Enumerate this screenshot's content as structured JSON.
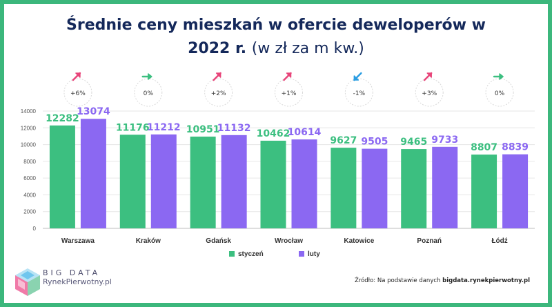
{
  "title_bold_line1": "Średnie ceny mieszkań w ofercie deweloperów w",
  "title_bold_line2": "2022 r.",
  "title_light": "(w zł za m kw.)",
  "logo": {
    "line1": "BIG DATA",
    "line2": "RynekPierwotny.pl"
  },
  "source": {
    "prefix": "Źródło: Na podstawie danych",
    "site": "bigdata.rynekpierwotny.pl"
  },
  "colors": {
    "series1": "#3cbf80",
    "series2": "#8b68f2",
    "up": "#e8457a",
    "flat": "#3cbf80",
    "down": "#2a9de2",
    "frame": "#3cb77c"
  },
  "chart_data": {
    "type": "bar",
    "categories": [
      "Warszawa",
      "Kraków",
      "Gdańsk",
      "Wrocław",
      "Katowice",
      "Poznań",
      "Łódź"
    ],
    "series": [
      {
        "name": "styczeń",
        "values": [
          12282,
          11176,
          10951,
          10462,
          9627,
          9465,
          8807
        ]
      },
      {
        "name": "luty",
        "values": [
          13074,
          11212,
          11132,
          10614,
          9505,
          9733,
          8839
        ]
      }
    ],
    "changes": [
      {
        "label": "+6%",
        "direction": "up"
      },
      {
        "label": "0%",
        "direction": "flat"
      },
      {
        "label": "+2%",
        "direction": "up"
      },
      {
        "label": "+1%",
        "direction": "up"
      },
      {
        "label": "-1%",
        "direction": "down"
      },
      {
        "label": "+3%",
        "direction": "up"
      },
      {
        "label": "0%",
        "direction": "flat"
      }
    ],
    "yticks": [
      0,
      2000,
      4000,
      6000,
      8000,
      10000,
      12000,
      14000
    ],
    "ylim": [
      0,
      14000
    ],
    "grid": true,
    "legend": "bottom-center"
  }
}
